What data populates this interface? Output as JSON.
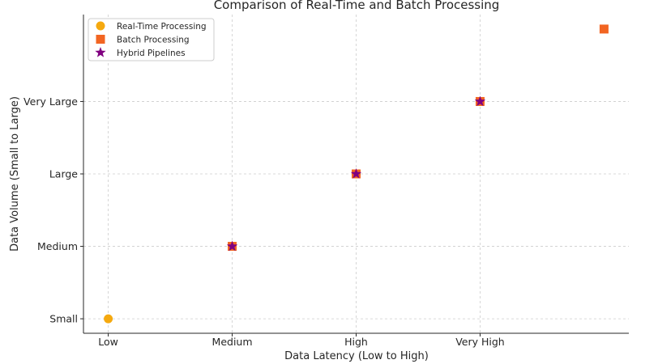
{
  "chart_data": {
    "type": "scatter",
    "title": "Comparison of Real-Time and Batch Processing",
    "xlabel": "Data Latency (Low to High)",
    "ylabel": "Data Volume (Small to Large)",
    "x_ticks": [
      "Low",
      "Medium",
      "High",
      "Very High"
    ],
    "y_ticks": [
      "Small",
      "Medium",
      "Large",
      "Very Large"
    ],
    "xlim": [
      0.8,
      5.2
    ],
    "ylim": [
      0.8,
      5.2
    ],
    "grid": true,
    "legend_position": "top-left",
    "series": [
      {
        "name": "Real-Time Processing",
        "marker": "circle",
        "color": "#f5a90f",
        "points": [
          [
            1,
            1
          ],
          [
            2,
            2
          ],
          [
            3,
            3
          ],
          [
            4,
            4
          ]
        ]
      },
      {
        "name": "Batch Processing",
        "marker": "square",
        "color": "#f26522",
        "points": [
          [
            2,
            2
          ],
          [
            3,
            3
          ],
          [
            4,
            4
          ],
          [
            5,
            5
          ]
        ]
      },
      {
        "name": "Hybrid Pipelines",
        "marker": "star",
        "color": "#800080",
        "points": [
          [
            2,
            2
          ],
          [
            3,
            3
          ],
          [
            4,
            4
          ]
        ]
      }
    ]
  }
}
